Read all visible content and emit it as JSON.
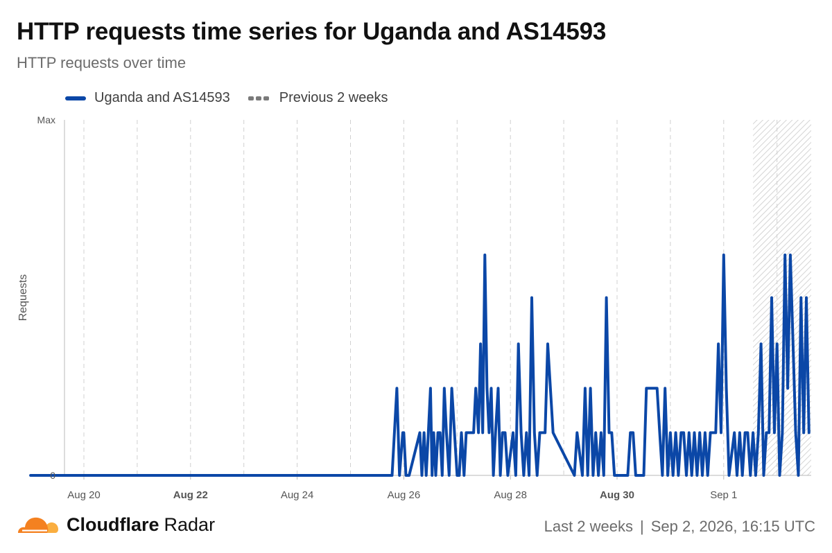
{
  "title": "HTTP requests time series for Uganda and AS14593",
  "subtitle": "HTTP requests over time",
  "legend": {
    "primary": "Uganda and AS14593",
    "previous": "Previous 2 weeks"
  },
  "colors": {
    "series": "#0b47a7",
    "previous": "#7a7a7a",
    "grid": "#d0d0d0",
    "axis": "#b8b8b8",
    "orange": "#f48120",
    "orange_light": "#faae40"
  },
  "footer": {
    "brand_strong": "Cloudflare",
    "brand_rest": "Radar",
    "range": "Last 2 weeks",
    "separator": "|",
    "timestamp": "Sep 2, 2026, 16:15 UTC"
  },
  "icons": {
    "logo": "cloudflare-cloud-icon"
  },
  "chart_data": {
    "type": "line",
    "ylabel": "Requests",
    "yticks": [
      "0",
      "Max"
    ],
    "ylim": [
      0,
      1
    ],
    "xlim": [
      0,
      13.65
    ],
    "x_unit": "days since Aug 19",
    "xticks": [
      {
        "label": "Aug 20",
        "x": 1,
        "bold": false
      },
      {
        "label": "Aug 22",
        "x": 3,
        "bold": true
      },
      {
        "label": "Aug 24",
        "x": 5,
        "bold": false
      },
      {
        "label": "Aug 26",
        "x": 7,
        "bold": false
      },
      {
        "label": "Aug 28",
        "x": 9,
        "bold": false
      },
      {
        "label": "Aug 30",
        "x": 11,
        "bold": true
      },
      {
        "label": "Sep 1",
        "x": 13,
        "bold": false
      }
    ],
    "gridlines_x": [
      1,
      2,
      3,
      4,
      5,
      6,
      7,
      8,
      9,
      10,
      11,
      12,
      13,
      14
    ],
    "partial_period_from": 13.55,
    "series": [
      {
        "name": "Uganda and AS14593",
        "x": [
          0,
          6.78,
          6.87,
          6.92,
          6.98,
          7.0,
          7.04,
          7.1,
          7.3,
          7.34,
          7.38,
          7.42,
          7.46,
          7.5,
          7.53,
          7.56,
          7.6,
          7.64,
          7.68,
          7.72,
          7.76,
          7.8,
          7.85,
          7.9,
          7.95,
          8.0,
          8.04,
          8.08,
          8.13,
          8.17,
          8.22,
          8.26,
          8.31,
          8.35,
          8.4,
          8.44,
          8.48,
          8.52,
          8.56,
          8.6,
          8.64,
          8.68,
          8.72,
          8.77,
          8.81,
          8.85,
          8.9,
          8.95,
          9.05,
          9.1,
          9.15,
          9.2,
          9.25,
          9.3,
          9.35,
          9.4,
          9.45,
          9.5,
          9.55,
          9.6,
          9.65,
          9.7,
          9.8,
          10.2,
          10.25,
          10.35,
          10.4,
          10.45,
          10.5,
          10.55,
          10.6,
          10.65,
          10.7,
          10.75,
          10.8,
          10.85,
          10.9,
          10.95,
          11.2,
          11.25,
          11.3,
          11.35,
          11.5,
          11.55,
          11.6,
          11.75,
          11.8,
          11.85,
          11.9,
          11.95,
          12.0,
          12.05,
          12.1,
          12.15,
          12.2,
          12.25,
          12.3,
          12.35,
          12.4,
          12.45,
          12.5,
          12.55,
          12.6,
          12.65,
          12.7,
          12.75,
          12.8,
          12.85,
          12.9,
          12.95,
          13.0,
          13.05,
          13.1,
          13.2,
          13.25,
          13.3,
          13.35,
          13.4,
          13.45,
          13.5,
          13.55,
          13.6,
          13.65,
          13.7,
          13.75,
          13.8,
          13.85,
          13.9,
          13.95,
          14.0,
          14.05,
          14.1,
          14.15,
          14.2,
          14.25,
          14.3,
          14.35,
          14.4,
          14.45,
          14.5,
          14.55,
          14.6
        ],
        "y": [
          0,
          0,
          0.245,
          0,
          0.12,
          0.12,
          0,
          0,
          0.12,
          0,
          0.12,
          0,
          0.12,
          0.245,
          0,
          0.12,
          0,
          0.12,
          0.12,
          0,
          0.245,
          0.12,
          0,
          0.245,
          0.12,
          0,
          0,
          0.12,
          0,
          0.12,
          0.12,
          0.12,
          0.12,
          0.245,
          0.12,
          0.37,
          0.12,
          0.62,
          0.245,
          0.12,
          0.245,
          0,
          0.12,
          0.245,
          0,
          0.12,
          0.12,
          0,
          0.12,
          0,
          0.37,
          0.12,
          0,
          0.12,
          0,
          0.5,
          0.12,
          0,
          0.12,
          0.12,
          0.12,
          0.37,
          0.12,
          0,
          0.12,
          0,
          0.245,
          0,
          0.245,
          0,
          0.12,
          0,
          0.12,
          0,
          0.5,
          0.12,
          0.12,
          0,
          0,
          0.12,
          0.12,
          0,
          0,
          0.245,
          0.245,
          0.245,
          0.12,
          0,
          0.245,
          0,
          0.12,
          0,
          0.12,
          0,
          0.12,
          0.12,
          0,
          0.12,
          0,
          0.12,
          0,
          0.12,
          0,
          0.12,
          0,
          0.12,
          0.12,
          0.12,
          0.37,
          0.12,
          0.62,
          0.245,
          0,
          0.12,
          0,
          0.12,
          0,
          0.12,
          0.12,
          0,
          0.12,
          0,
          0.12,
          0.37,
          0,
          0.12,
          0.12,
          0.5,
          0.12,
          0.37,
          0,
          0.12,
          0.62,
          0.245,
          0.62,
          0.37,
          0.12,
          0,
          0.5,
          0.12,
          0.5,
          0.12
        ]
      }
    ]
  }
}
